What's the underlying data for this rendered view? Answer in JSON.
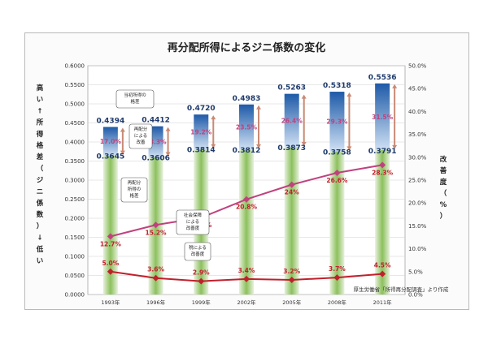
{
  "chart_data": {
    "type": "bar",
    "title": "再分配所得によるジニ係数の変化",
    "categories": [
      "1993年",
      "1996年",
      "1999年",
      "2002年",
      "2005年",
      "2008年",
      "2011年"
    ],
    "series": [
      {
        "name": "当初所得の格差",
        "kind": "bar-top",
        "values": [
          0.4394,
          0.4412,
          0.472,
          0.4983,
          0.5263,
          0.5318,
          0.5536
        ],
        "labels": [
          "0.4394",
          "0.4412",
          "0.4720",
          "0.4983",
          "0.5263",
          "0.5318",
          "0.5536"
        ]
      },
      {
        "name": "再配分所得の格差",
        "kind": "bar-base",
        "values": [
          0.3645,
          0.3606,
          0.3814,
          0.3812,
          0.3873,
          0.3758,
          0.3791
        ],
        "labels": [
          "0.3645",
          "0.3606",
          "0.3814",
          "0.3812",
          "0.3873",
          "0.3758",
          "0.3791"
        ]
      },
      {
        "name": "再配分による改善",
        "kind": "improvement",
        "values": [
          17.0,
          18.3,
          19.2,
          23.5,
          26.4,
          29.3,
          31.5
        ],
        "labels": [
          "17.0%",
          "18.3%",
          "19.2%",
          "23.5%",
          "26.4%",
          "29.3%",
          "31.5%"
        ]
      },
      {
        "name": "社会保障による改善度",
        "kind": "line-right",
        "values": [
          12.7,
          15.2,
          16.8,
          20.8,
          24.0,
          26.6,
          28.3
        ],
        "labels": [
          "12.7%",
          "15.2%",
          "16.8%",
          "20.8%",
          "24%",
          "26.6%",
          "28.3%"
        ]
      },
      {
        "name": "税による改善度",
        "kind": "line-right",
        "values": [
          5.0,
          3.6,
          2.9,
          3.4,
          3.2,
          3.7,
          4.5
        ],
        "labels": [
          "5.0%",
          "3.6%",
          "2.9%",
          "3.4%",
          "3.2%",
          "3.7%",
          "4.5%"
        ]
      }
    ],
    "ylim": [
      0,
      0.6
    ],
    "y_ticks": [
      "0.0000",
      "0.0500",
      "0.1000",
      "0.1500",
      "0.2000",
      "0.2500",
      "0.3000",
      "0.3500",
      "0.4000",
      "0.4500",
      "0.5000",
      "0.5500",
      "0.6000"
    ],
    "y2lim": [
      0,
      50
    ],
    "y2_ticks": [
      "0.0%",
      "5.0%",
      "10.0%",
      "15.0%",
      "20.0%",
      "25.0%",
      "30.0%",
      "35.0%",
      "40.0%",
      "45.0%",
      "50.0%"
    ],
    "ylabel_chars": [
      "高",
      "い",
      "↑",
      "所",
      "得",
      "格",
      "差",
      "（",
      "ジ",
      "ニ",
      "係",
      "数",
      "）",
      "↓",
      "低",
      "い"
    ],
    "y2label_chars": [
      "改",
      "善",
      "度",
      "（",
      "%",
      "）"
    ],
    "callouts": [
      {
        "lines": [
          "当初所得の",
          "格差"
        ]
      },
      {
        "lines": [
          "再配分",
          "による",
          "改善"
        ]
      },
      {
        "lines": [
          "再配分",
          "所得の",
          "格差"
        ]
      },
      {
        "lines": [
          "社会保障",
          "による",
          "改善度"
        ]
      },
      {
        "lines": [
          "税による",
          "改善度"
        ]
      }
    ],
    "source": "厚生労働省「所得再分配調査」より作成",
    "grid": true,
    "colors": {
      "bar_top": "#2f6fbe",
      "bar_base": "#7ab648",
      "line_ss": "#c0417d",
      "line_tax": "#c0202c",
      "improve_arrow": "#c98a75",
      "label_dark": "#1f3a6b"
    }
  }
}
